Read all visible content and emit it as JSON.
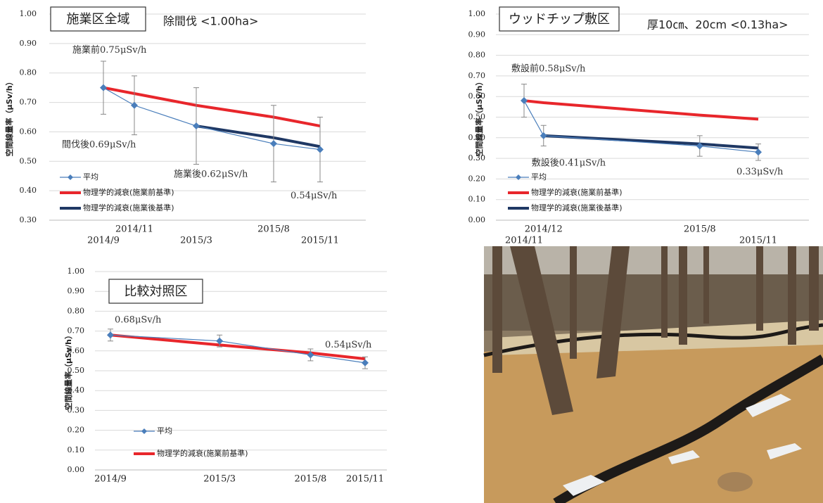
{
  "chart_data": [
    {
      "type": "line",
      "title": "施業区全域",
      "subtitle": "除間伐 <1.00ha>",
      "y_label": "空間線量率（μSv/h）",
      "x": [
        "2014/9",
        "2014/11",
        "2015/3",
        "2015/8",
        "2015/11"
      ],
      "ylim": [
        0.3,
        1.0
      ],
      "yticks": [
        {
          "value": 0.3,
          "label": "0.30"
        },
        {
          "value": 0.4,
          "label": "0.40"
        },
        {
          "value": 0.5,
          "label": "0.50"
        },
        {
          "value": 0.6,
          "label": "0.60"
        },
        {
          "value": 0.7,
          "label": "0.70"
        },
        {
          "value": 0.8,
          "label": "0.80"
        },
        {
          "value": 0.9,
          "label": "0.90"
        },
        {
          "value": 1.0,
          "label": "1.00"
        }
      ],
      "grid": true,
      "series": [
        {
          "name": "平均",
          "color": "#4a7ebb",
          "values": [
            0.75,
            0.69,
            0.62,
            0.56,
            0.54
          ],
          "errors": [
            0.09,
            0.1,
            0.13,
            0.13,
            0.11
          ],
          "value_labels": [
            "施業前0.75μSv/h",
            "間伐後0.69μSv/h",
            "施業後0.62μSv/h",
            null,
            "0.54μSv/h"
          ]
        },
        {
          "name": "物理学的減衰(施業前基準)",
          "color": "#e8262b",
          "values": [
            0.75,
            0.73,
            0.69,
            0.65,
            0.62
          ]
        },
        {
          "name": "物理学的減衰(施業後基準)",
          "color": "#1f3864",
          "values": [
            null,
            null,
            0.62,
            0.58,
            0.55
          ]
        }
      ]
    },
    {
      "type": "line",
      "title": "ウッドチップ敷区",
      "subtitle": "厚10㎝、20cm <0.13ha>",
      "y_label": "空間線量率（μSv/h）",
      "x": [
        "2014/11",
        "2014/12",
        "2015/8",
        "2015/11"
      ],
      "ylim": [
        0,
        1.0
      ],
      "yticks": [
        {
          "value": 0,
          "label": "0.00"
        },
        {
          "value": 0.1,
          "label": "0.10"
        },
        {
          "value": 0.2,
          "label": "0.20"
        },
        {
          "value": 0.3,
          "label": "0.30"
        },
        {
          "value": 0.4,
          "label": "0.40"
        },
        {
          "value": 0.5,
          "label": "0.50"
        },
        {
          "value": 0.6,
          "label": "0.60"
        },
        {
          "value": 0.7,
          "label": "0.70"
        },
        {
          "value": 0.8,
          "label": "0.80"
        },
        {
          "value": 0.9,
          "label": "0.90"
        },
        {
          "value": 1.0,
          "label": "1.00"
        }
      ],
      "grid": true,
      "series": [
        {
          "name": "平均",
          "color": "#4a7ebb",
          "values": [
            0.58,
            0.41,
            0.36,
            0.33
          ],
          "errors": [
            0.08,
            0.05,
            0.05,
            0.04
          ],
          "value_labels": [
            "敷設前0.58μSv/h",
            "敷設後0.41μSv/h",
            null,
            "0.33μSv/h"
          ]
        },
        {
          "name": "物理学的減衰(施業前基準)",
          "color": "#e8262b",
          "values": [
            0.58,
            0.57,
            0.51,
            0.49
          ]
        },
        {
          "name": "物理学的減衰(施業後基準)",
          "color": "#1f3864",
          "values": [
            null,
            0.41,
            0.37,
            0.35
          ]
        }
      ]
    },
    {
      "type": "line",
      "title": "比較対照区",
      "y_label": "空間線量率（μSv/h）",
      "x": [
        "2014/9",
        "2015/3",
        "2015/8",
        "2015/11"
      ],
      "ylim": [
        0,
        1.0
      ],
      "yticks": [
        {
          "value": 0,
          "label": "0.00"
        },
        {
          "value": 0.1,
          "label": "0.10"
        },
        {
          "value": 0.2,
          "label": "0.20"
        },
        {
          "value": 0.3,
          "label": "0.30"
        },
        {
          "value": 0.4,
          "label": "0.40"
        },
        {
          "value": 0.5,
          "label": "0.50"
        },
        {
          "value": 0.6,
          "label": "0.60"
        },
        {
          "value": 0.7,
          "label": "0.70"
        },
        {
          "value": 0.8,
          "label": "0.80"
        },
        {
          "value": 0.9,
          "label": "0.90"
        },
        {
          "value": 1.0,
          "label": "1.00"
        }
      ],
      "grid": true,
      "series": [
        {
          "name": "平均",
          "color": "#4a7ebb",
          "values": [
            0.68,
            0.65,
            0.58,
            0.54
          ],
          "errors": [
            0.03,
            0.03,
            0.03,
            0.03
          ],
          "value_labels": [
            "0.68μSv/h",
            null,
            null,
            "0.54μSv/h"
          ]
        },
        {
          "name": "物理学的減衰(施業前基準)",
          "color": "#e8262b",
          "values": [
            0.68,
            0.63,
            0.59,
            0.56
          ]
        }
      ]
    }
  ]
}
